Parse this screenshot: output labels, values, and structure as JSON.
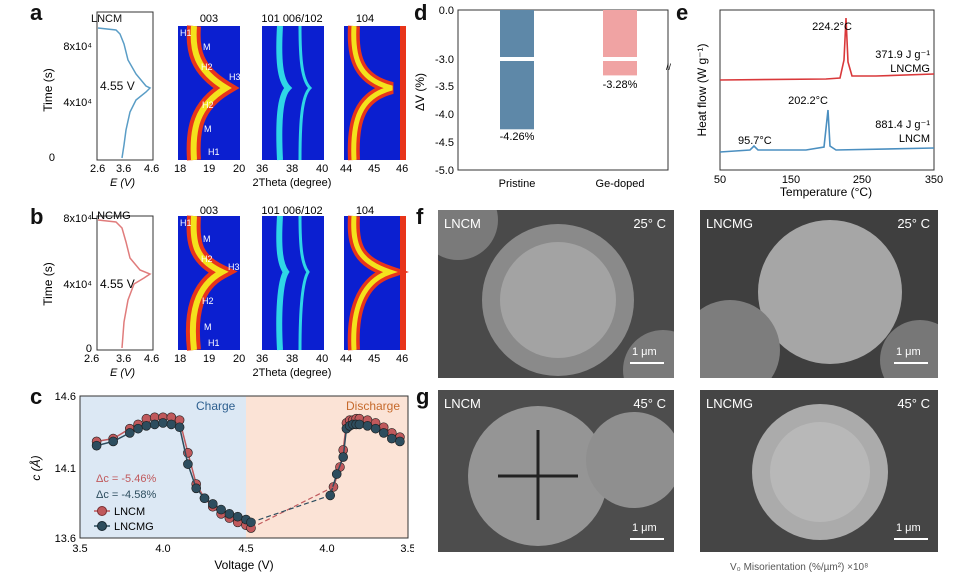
{
  "panels": {
    "a": "a",
    "b": "b",
    "c": "c",
    "d": "d",
    "e": "e",
    "f": "f",
    "g": "g"
  },
  "a": {
    "title": "LNCM",
    "voltage_label": "4.55 V",
    "ylabel": "Time (s)",
    "yticks": [
      "0",
      "4x10⁴",
      "8x10⁴"
    ],
    "xlabel_e": "E (V)",
    "xticks_e": [
      "2.6",
      "3.6",
      "4.6"
    ],
    "section_titles": [
      "003",
      "101 006/102",
      "104"
    ],
    "phase_labels": [
      "H1",
      "M",
      "H2",
      "H3",
      "H2",
      "M",
      "H1"
    ],
    "xticks_003": [
      "18",
      "19",
      "20"
    ],
    "xticks_101": [
      "36",
      "38",
      "40"
    ],
    "xticks_104": [
      "44",
      "45",
      "46"
    ],
    "xlabel_2theta": "2Theta (degree)"
  },
  "b": {
    "title": "LNCMG",
    "voltage_label": "4.55 V",
    "ylabel": "Time (s)",
    "yticks": [
      "0",
      "4x10⁴",
      "8x10⁴"
    ],
    "xlabel_e": "E (V)",
    "xticks_e": [
      "2.6",
      "3.6",
      "4.6"
    ],
    "section_titles": [
      "003",
      "101 006/102",
      "104"
    ],
    "phase_labels": [
      "H1",
      "M",
      "H2",
      "H3",
      "H2",
      "M",
      "H1"
    ],
    "xticks_003": [
      "18",
      "19",
      "20"
    ],
    "xticks_101": [
      "36",
      "38",
      "40"
    ],
    "xticks_104": [
      "44",
      "45",
      "46"
    ],
    "xlabel_2theta": "2Theta (degree)"
  },
  "c": {
    "ylabel": "c (Å)",
    "xlabel": "Voltage (V)",
    "yticks": [
      "13.6",
      "14.1",
      "14.6"
    ],
    "xticks": [
      "3.5",
      "4.0",
      "4.5",
      "4.0",
      "3.5"
    ],
    "charge": "Charge",
    "discharge": "Discharge",
    "delta_lncm": "Δc = -5.46%",
    "delta_lncmg": "Δc = -4.58%",
    "legend": [
      "LNCM",
      "LNCMG"
    ],
    "colors": {
      "lncm": "#c0595c",
      "lncmg": "#2d4d5e",
      "charge_bg": "#dce8f4",
      "discharge_bg": "#fbe3d6"
    }
  },
  "d": {
    "ylabel": "ΔV (%)",
    "yticks": [
      "0.0",
      "-3.0",
      "-3.5",
      "-4.0",
      "-4.5",
      "-5.0"
    ],
    "categories": [
      "Pristine",
      "Ge-doped"
    ],
    "value_labels": [
      "-4.26%",
      "-3.28%"
    ],
    "colors": {
      "pristine": "#5e88a8",
      "gedoped": "#f0a3a3"
    }
  },
  "e": {
    "ylabel": "Heat flow (W g⁻¹)",
    "xlabel": "Temperature (°C)",
    "xticks": [
      "50",
      "150",
      "250",
      "350"
    ],
    "peak_lncmg": "224.2°C",
    "heat_lncmg": "371.9 J g⁻¹",
    "label_lncmg": "LNCMG",
    "peak_lncm": "202.2°C",
    "peak_lncm_low": "95.7°C",
    "heat_lncm": "881.4 J g⁻¹",
    "label_lncm": "LNCM",
    "colors": {
      "lncmg": "#d9383a",
      "lncm": "#4b8fc0"
    }
  },
  "f": {
    "left_tag": "LNCM",
    "left_temp": "25° C",
    "left_scale": "1 μm",
    "right_tag": "LNCMG",
    "right_temp": "25° C",
    "right_scale": "1 μm"
  },
  "g": {
    "left_tag": "LNCM",
    "left_temp": "45° C",
    "left_scale": "1 μm",
    "right_tag": "LNCMG",
    "right_temp": "45° C",
    "right_scale": "1 μm"
  },
  "footer_fragment": "V₀ Misorientation (%/µm²) ×10⁸",
  "chart_data": [
    {
      "type": "line",
      "panel": "c",
      "xlabel": "Voltage (V)",
      "ylabel": "c (Å)",
      "ylim": [
        13.6,
        14.6
      ],
      "series": [
        {
          "name": "LNCM",
          "segment": "charge",
          "x": [
            3.6,
            3.7,
            3.8,
            3.85,
            3.9,
            3.95,
            4.0,
            4.05,
            4.1,
            4.15,
            4.2,
            4.25,
            4.3,
            4.35,
            4.4,
            4.45,
            4.5,
            4.53
          ],
          "y": [
            14.28,
            14.3,
            14.37,
            14.4,
            14.44,
            14.45,
            14.45,
            14.45,
            14.43,
            14.2,
            13.98,
            13.88,
            13.82,
            13.77,
            13.74,
            13.71,
            13.69,
            13.67
          ]
        },
        {
          "name": "LNCMG",
          "segment": "charge",
          "x": [
            3.6,
            3.7,
            3.8,
            3.85,
            3.9,
            3.95,
            4.0,
            4.05,
            4.1,
            4.15,
            4.2,
            4.25,
            4.3,
            4.35,
            4.4,
            4.45,
            4.5,
            4.53
          ],
          "y": [
            14.25,
            14.28,
            14.34,
            14.37,
            14.39,
            14.4,
            14.41,
            14.4,
            14.38,
            14.12,
            13.95,
            13.88,
            13.84,
            13.8,
            13.77,
            13.75,
            13.73,
            13.71
          ]
        },
        {
          "name": "LNCM",
          "segment": "discharge",
          "x": [
            3.96,
            3.92,
            3.9,
            3.88,
            3.86,
            3.84,
            3.82,
            3.8,
            3.75,
            3.7,
            3.65,
            3.6,
            3.55
          ],
          "y": [
            13.96,
            14.1,
            14.22,
            14.41,
            14.43,
            14.43,
            14.44,
            14.44,
            14.43,
            14.41,
            14.38,
            14.34,
            14.31
          ]
        },
        {
          "name": "LNCMG",
          "segment": "discharge",
          "x": [
            3.98,
            3.94,
            3.9,
            3.88,
            3.86,
            3.84,
            3.82,
            3.8,
            3.75,
            3.7,
            3.65,
            3.6,
            3.55
          ],
          "y": [
            13.9,
            14.05,
            14.17,
            14.37,
            14.39,
            14.4,
            14.4,
            14.4,
            14.39,
            14.37,
            14.34,
            14.3,
            14.28
          ]
        }
      ]
    },
    {
      "type": "bar",
      "panel": "d",
      "ylabel": "ΔV (%)",
      "categories": [
        "Pristine",
        "Ge-doped"
      ],
      "values": [
        -4.26,
        -3.28
      ],
      "ylim": [
        -5.0,
        0.0
      ]
    },
    {
      "type": "line",
      "panel": "e",
      "xlabel": "Temperature (°C)",
      "ylabel": "Heat flow (W g⁻¹)",
      "xlim": [
        50,
        350
      ],
      "series": [
        {
          "name": "LNCMG",
          "peak_x": 224.2
        },
        {
          "name": "LNCM",
          "peak_x": [
            95.7,
            202.2
          ]
        }
      ]
    }
  ]
}
